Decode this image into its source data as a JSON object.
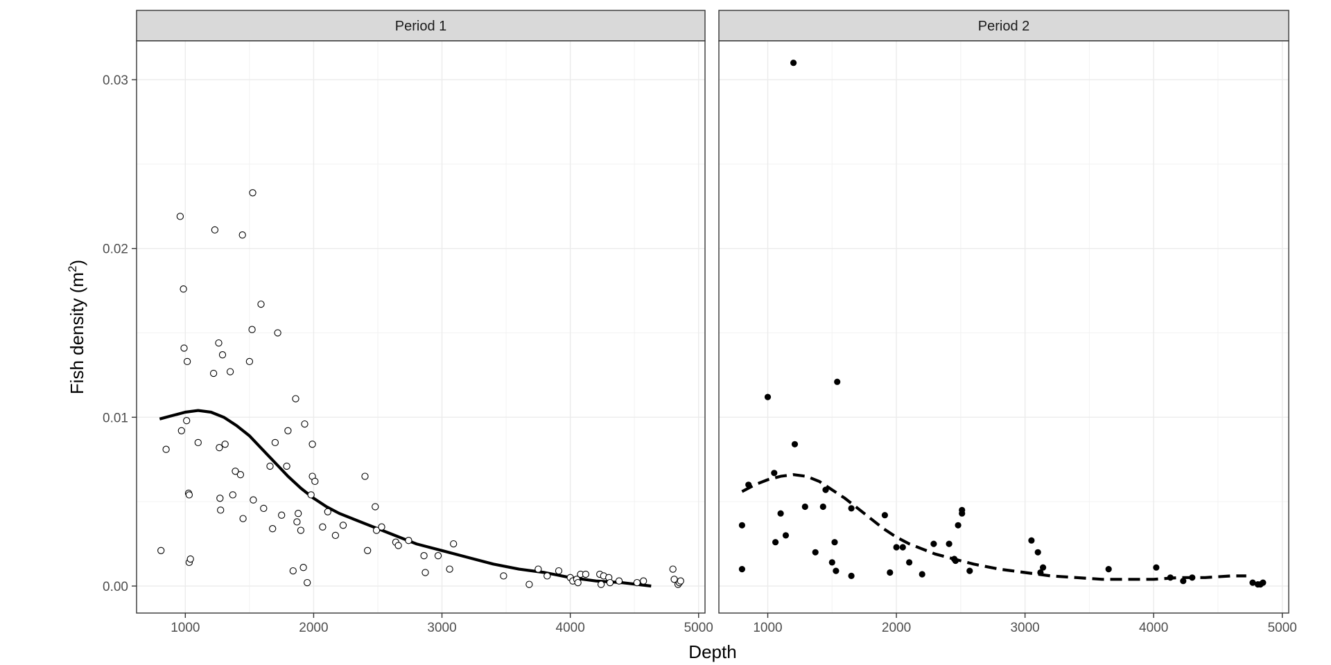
{
  "chart_data": {
    "type": "scatter",
    "xlabel": "Depth",
    "ylabel": "Fish density (m",
    "ylabel_superscript": "2",
    "ylabel_close": ")",
    "xlim": [
      620,
      5050
    ],
    "ylim": [
      -0.0016,
      0.0323
    ],
    "x_ticks": [
      1000,
      2000,
      3000,
      4000,
      5000
    ],
    "x_tick_labels": [
      "1000",
      "2000",
      "3000",
      "4000",
      "5000"
    ],
    "y_ticks": [
      0,
      0.01,
      0.02,
      0.03
    ],
    "y_tick_labels": [
      "0.00",
      "0.01",
      "0.02",
      "0.03"
    ],
    "grid": true,
    "panels": [
      {
        "label": "Period 1",
        "marker": "open-circle",
        "smooth_style": "solid",
        "points": [
          [
            810,
            0.0021
          ],
          [
            850,
            0.0081
          ],
          [
            960,
            0.0219
          ],
          [
            970,
            0.0092
          ],
          [
            985,
            0.0176
          ],
          [
            990,
            0.0141
          ],
          [
            1010,
            0.0098
          ],
          [
            1015,
            0.0133
          ],
          [
            1025,
            0.0055
          ],
          [
            1030,
            0.0054
          ],
          [
            1030,
            0.0014
          ],
          [
            1040,
            0.0016
          ],
          [
            1100,
            0.0085
          ],
          [
            1220,
            0.0126
          ],
          [
            1230,
            0.0211
          ],
          [
            1260,
            0.0144
          ],
          [
            1265,
            0.0082
          ],
          [
            1270,
            0.0052
          ],
          [
            1275,
            0.0045
          ],
          [
            1290,
            0.0137
          ],
          [
            1310,
            0.0084
          ],
          [
            1350,
            0.0127
          ],
          [
            1370,
            0.0054
          ],
          [
            1390,
            0.0068
          ],
          [
            1430,
            0.0066
          ],
          [
            1445,
            0.0208
          ],
          [
            1450,
            0.004
          ],
          [
            1500,
            0.0133
          ],
          [
            1520,
            0.0152
          ],
          [
            1525,
            0.0233
          ],
          [
            1530,
            0.0051
          ],
          [
            1590,
            0.0167
          ],
          [
            1610,
            0.0046
          ],
          [
            1660,
            0.0071
          ],
          [
            1680,
            0.0034
          ],
          [
            1700,
            0.0085
          ],
          [
            1720,
            0.015
          ],
          [
            1750,
            0.0042
          ],
          [
            1790,
            0.0071
          ],
          [
            1800,
            0.0092
          ],
          [
            1840,
            0.0009
          ],
          [
            1860,
            0.0111
          ],
          [
            1870,
            0.0038
          ],
          [
            1880,
            0.0043
          ],
          [
            1900,
            0.0033
          ],
          [
            1920,
            0.0011
          ],
          [
            1930,
            0.0096
          ],
          [
            1950,
            0.0002
          ],
          [
            1980,
            0.0054
          ],
          [
            1990,
            0.0084
          ],
          [
            1990,
            0.0065
          ],
          [
            2010,
            0.0062
          ],
          [
            2070,
            0.0035
          ],
          [
            2110,
            0.0044
          ],
          [
            2170,
            0.003
          ],
          [
            2230,
            0.0036
          ],
          [
            2400,
            0.0065
          ],
          [
            2420,
            0.0021
          ],
          [
            2480,
            0.0047
          ],
          [
            2490,
            0.0033
          ],
          [
            2530,
            0.0035
          ],
          [
            2640,
            0.0026
          ],
          [
            2660,
            0.0024
          ],
          [
            2740,
            0.0027
          ],
          [
            2860,
            0.0018
          ],
          [
            2870,
            0.0008
          ],
          [
            2970,
            0.0018
          ],
          [
            3060,
            0.001
          ],
          [
            3090,
            0.0025
          ],
          [
            3480,
            0.0006
          ],
          [
            3680,
            0.0001
          ],
          [
            3750,
            0.001
          ],
          [
            3820,
            0.0006
          ],
          [
            3910,
            0.0009
          ],
          [
            4000,
            0.0005
          ],
          [
            4020,
            0.0003
          ],
          [
            4050,
            0.0004
          ],
          [
            4060,
            0.0002
          ],
          [
            4080,
            0.0007
          ],
          [
            4120,
            0.0007
          ],
          [
            4230,
            0.0007
          ],
          [
            4240,
            0.0001
          ],
          [
            4260,
            0.0006
          ],
          [
            4300,
            0.0005
          ],
          [
            4310,
            0.0002
          ],
          [
            4380,
            0.0003
          ],
          [
            4520,
            0.0002
          ],
          [
            4570,
            0.0003
          ],
          [
            4800,
            0.001
          ],
          [
            4810,
            0.0004
          ],
          [
            4840,
            0.0001
          ],
          [
            4850,
            0.0002
          ],
          [
            4860,
            0.0003
          ]
        ],
        "smooth": [
          [
            800,
            0.0099
          ],
          [
            900,
            0.0101
          ],
          [
            1000,
            0.0103
          ],
          [
            1100,
            0.0104
          ],
          [
            1200,
            0.0103
          ],
          [
            1300,
            0.01
          ],
          [
            1400,
            0.0095
          ],
          [
            1500,
            0.0089
          ],
          [
            1600,
            0.0081
          ],
          [
            1700,
            0.0073
          ],
          [
            1800,
            0.0065
          ],
          [
            1900,
            0.0058
          ],
          [
            2000,
            0.0052
          ],
          [
            2100,
            0.0047
          ],
          [
            2200,
            0.0043
          ],
          [
            2300,
            0.004
          ],
          [
            2400,
            0.0037
          ],
          [
            2500,
            0.0034
          ],
          [
            2600,
            0.0031
          ],
          [
            2700,
            0.0028
          ],
          [
            2800,
            0.0025
          ],
          [
            2900,
            0.0023
          ],
          [
            3000,
            0.0021
          ],
          [
            3200,
            0.0017
          ],
          [
            3400,
            0.0013
          ],
          [
            3600,
            0.001
          ],
          [
            3800,
            0.0008
          ],
          [
            4000,
            0.0005
          ],
          [
            4200,
            0.0003
          ],
          [
            4400,
            0.0002
          ],
          [
            4630,
            0.0
          ]
        ]
      },
      {
        "label": "Period 2",
        "marker": "filled-circle",
        "smooth_style": "dashed",
        "points": [
          [
            800,
            0.0036
          ],
          [
            800,
            0.001
          ],
          [
            850,
            0.006
          ],
          [
            1000,
            0.0112
          ],
          [
            1050,
            0.0067
          ],
          [
            1060,
            0.0026
          ],
          [
            1100,
            0.0043
          ],
          [
            1140,
            0.003
          ],
          [
            1200,
            0.031
          ],
          [
            1210,
            0.0084
          ],
          [
            1290,
            0.0047
          ],
          [
            1370,
            0.002
          ],
          [
            1430,
            0.0047
          ],
          [
            1450,
            0.0057
          ],
          [
            1500,
            0.0014
          ],
          [
            1520,
            0.0026
          ],
          [
            1530,
            0.0009
          ],
          [
            1540,
            0.0121
          ],
          [
            1650,
            0.0046
          ],
          [
            1650,
            0.0006
          ],
          [
            1910,
            0.0042
          ],
          [
            1950,
            0.0008
          ],
          [
            2000,
            0.0023
          ],
          [
            2050,
            0.0023
          ],
          [
            2100,
            0.0014
          ],
          [
            2200,
            0.0007
          ],
          [
            2290,
            0.0025
          ],
          [
            2410,
            0.0025
          ],
          [
            2450,
            0.0016
          ],
          [
            2460,
            0.0015
          ],
          [
            2480,
            0.0036
          ],
          [
            2510,
            0.0045
          ],
          [
            2510,
            0.0043
          ],
          [
            2570,
            0.0009
          ],
          [
            3050,
            0.0027
          ],
          [
            3100,
            0.002
          ],
          [
            3120,
            0.0008
          ],
          [
            3140,
            0.0011
          ],
          [
            3650,
            0.001
          ],
          [
            4020,
            0.0011
          ],
          [
            4130,
            0.0005
          ],
          [
            4230,
            0.0003
          ],
          [
            4300,
            0.0005
          ],
          [
            4770,
            0.0002
          ],
          [
            4810,
            0.0001
          ],
          [
            4830,
            0.0001
          ],
          [
            4850,
            0.0002
          ]
        ],
        "smooth": [
          [
            800,
            0.0056
          ],
          [
            900,
            0.006
          ],
          [
            1000,
            0.0063
          ],
          [
            1100,
            0.0065
          ],
          [
            1200,
            0.0066
          ],
          [
            1300,
            0.0065
          ],
          [
            1400,
            0.0062
          ],
          [
            1500,
            0.0057
          ],
          [
            1600,
            0.0052
          ],
          [
            1700,
            0.0046
          ],
          [
            1800,
            0.004
          ],
          [
            1900,
            0.0034
          ],
          [
            2000,
            0.0029
          ],
          [
            2100,
            0.0025
          ],
          [
            2200,
            0.0022
          ],
          [
            2300,
            0.0019
          ],
          [
            2400,
            0.0017
          ],
          [
            2500,
            0.0015
          ],
          [
            2600,
            0.0013
          ],
          [
            2800,
            0.001
          ],
          [
            3000,
            0.0008
          ],
          [
            3200,
            0.0006
          ],
          [
            3400,
            0.0005
          ],
          [
            3600,
            0.0004
          ],
          [
            3800,
            0.0004
          ],
          [
            4000,
            0.0004
          ],
          [
            4200,
            0.0005
          ],
          [
            4400,
            0.0005
          ],
          [
            4600,
            0.0006
          ],
          [
            4720,
            0.0006
          ]
        ]
      }
    ]
  }
}
